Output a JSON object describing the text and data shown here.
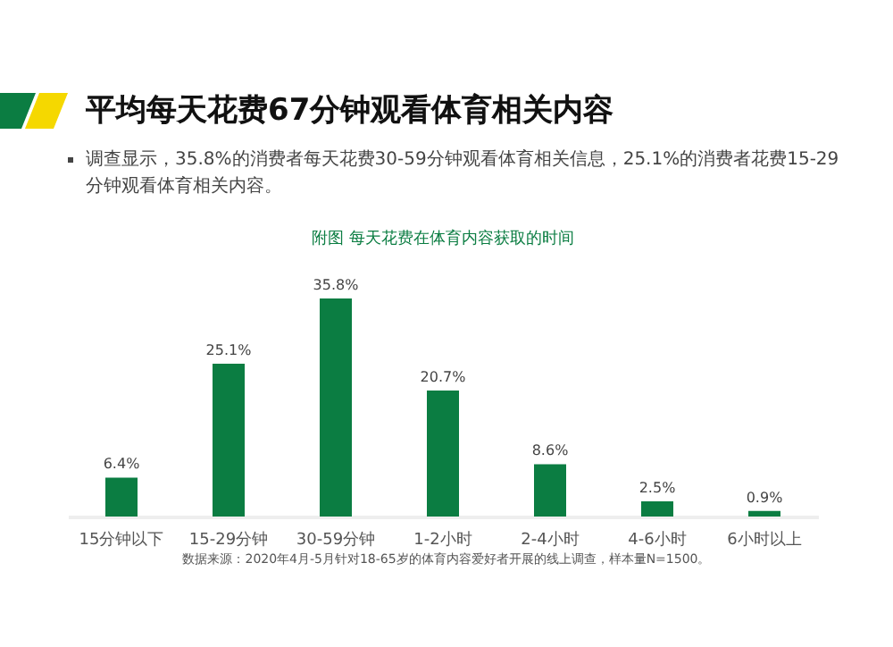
{
  "chart_data": {
    "type": "bar",
    "title": "平均每天花费67分钟观看体育相关内容",
    "subtitle": "附图  每天花费在体育内容获取的时间",
    "annotations": [
      "调查显示，35.8%的消费者每天花费30-59分钟观看体育相关信息，25.1%的消费者花费15-29分钟观看体育相关内容。",
      "数据来源：2020年4月-5月针对18-65岁的体育内容爱好者开展的线上调查，样本量N=1500。"
    ],
    "categories": [
      "15分钟以下",
      "15-29分钟",
      "30-59分钟",
      "1-2小时",
      "2-4小时",
      "4-6小时",
      "6小时以上"
    ],
    "values": [
      6.4,
      25.1,
      35.8,
      20.7,
      8.6,
      2.5,
      0.9
    ],
    "value_labels": [
      "6.4%",
      "25.1%",
      "35.8%",
      "20.7%",
      "8.6%",
      "2.5%",
      "0.9%"
    ],
    "color": "#0b7d42",
    "grid": false
  }
}
